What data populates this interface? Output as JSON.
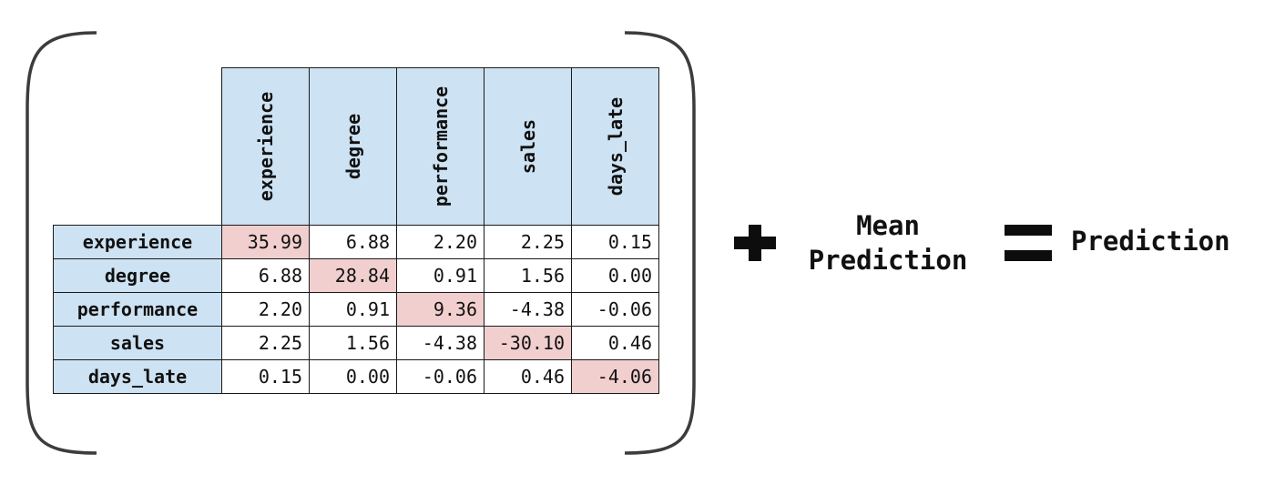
{
  "matrix": {
    "columns": [
      "experience",
      "degree",
      "performance",
      "sales",
      "days_late"
    ],
    "rows": [
      {
        "label": "experience",
        "values": [
          "35.99",
          "6.88",
          "2.20",
          "2.25",
          "0.15"
        ]
      },
      {
        "label": "degree",
        "values": [
          "6.88",
          "28.84",
          "0.91",
          "1.56",
          "0.00"
        ]
      },
      {
        "label": "performance",
        "values": [
          "2.20",
          "0.91",
          "9.36",
          "-4.38",
          "-0.06"
        ]
      },
      {
        "label": "sales",
        "values": [
          "2.25",
          "1.56",
          "-4.38",
          "-30.10",
          "0.46"
        ]
      },
      {
        "label": "days_late",
        "values": [
          "0.15",
          "0.00",
          "-0.06",
          "0.46",
          "-4.06"
        ]
      }
    ],
    "header_color": "#cde2f2",
    "diagonal_color": "#f2cfcf"
  },
  "equation": {
    "plus_icon": "plus-icon",
    "mean_line1": "Mean",
    "mean_line2": "Prediction",
    "equals_icon": "equals-icon",
    "result": "Prediction"
  }
}
